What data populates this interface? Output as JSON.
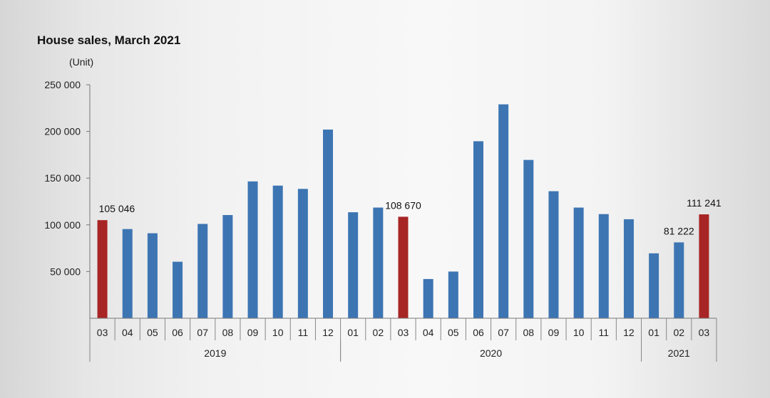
{
  "chart_data": {
    "type": "bar",
    "title": "House sales, March 2021",
    "ylabel": "(Unit)",
    "xlabel": "",
    "ylim": [
      0,
      250000
    ],
    "yticks": [
      50000,
      100000,
      150000,
      200000,
      250000
    ],
    "ytick_labels": [
      "50 000",
      "100 000",
      "150 000",
      "200 000",
      "250 000"
    ],
    "categories": [
      "03",
      "04",
      "05",
      "06",
      "07",
      "08",
      "09",
      "10",
      "11",
      "12",
      "01",
      "02",
      "03",
      "04",
      "05",
      "06",
      "07",
      "08",
      "09",
      "10",
      "11",
      "12",
      "01",
      "02",
      "03"
    ],
    "values": [
      105046,
      95500,
      91000,
      60500,
      101000,
      110500,
      146500,
      142000,
      138500,
      202000,
      113500,
      118500,
      108670,
      42000,
      50000,
      189500,
      229000,
      169500,
      136000,
      118500,
      111500,
      106000,
      69500,
      81222,
      111241
    ],
    "highlighted": [
      0,
      12,
      24
    ],
    "year_groups": [
      {
        "label": "2019",
        "start": 0,
        "end": 9
      },
      {
        "label": "2020",
        "start": 10,
        "end": 21
      },
      {
        "label": "2021",
        "start": 22,
        "end": 24
      }
    ],
    "data_labels": [
      {
        "index": 0,
        "text": "105 046"
      },
      {
        "index": 12,
        "text": "108 670"
      },
      {
        "index": 23,
        "text": "81 222"
      },
      {
        "index": 24,
        "text": "111 241"
      }
    ],
    "colors": {
      "bar": "#3d75b3",
      "highlight": "#a82525"
    },
    "grid": false,
    "legend": "none"
  }
}
